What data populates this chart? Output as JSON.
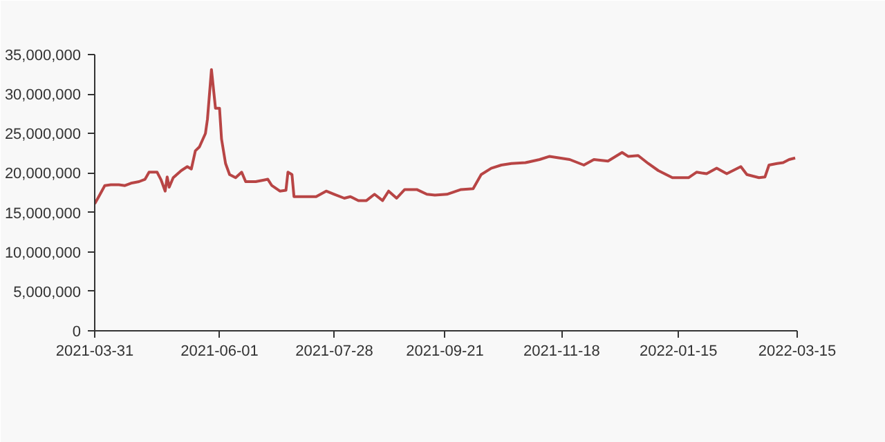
{
  "chart_data": {
    "type": "line",
    "x": [
      "2021-03-31",
      "2021-04-02",
      "2021-04-05",
      "2021-04-08",
      "2021-04-12",
      "2021-04-15",
      "2021-04-18",
      "2021-04-22",
      "2021-04-25",
      "2021-04-27",
      "2021-05-01",
      "2021-05-03",
      "2021-05-05",
      "2021-05-06",
      "2021-05-07",
      "2021-05-09",
      "2021-05-13",
      "2021-05-16",
      "2021-05-18",
      "2021-05-20",
      "2021-05-22",
      "2021-05-25",
      "2021-05-26",
      "2021-05-28",
      "2021-05-30",
      "2021-06-01",
      "2021-06-02",
      "2021-06-04",
      "2021-06-06",
      "2021-06-09",
      "2021-06-12",
      "2021-06-14",
      "2021-06-19",
      "2021-06-23",
      "2021-06-25",
      "2021-06-27",
      "2021-07-01",
      "2021-07-04",
      "2021-07-05",
      "2021-07-07",
      "2021-07-08",
      "2021-07-12",
      "2021-07-19",
      "2021-07-24",
      "2021-07-28",
      "2021-08-02",
      "2021-08-05",
      "2021-08-09",
      "2021-08-13",
      "2021-08-17",
      "2021-08-21",
      "2021-08-24",
      "2021-08-28",
      "2021-09-01",
      "2021-09-07",
      "2021-09-12",
      "2021-09-16",
      "2021-09-22",
      "2021-09-29",
      "2021-10-05",
      "2021-10-09",
      "2021-10-14",
      "2021-10-19",
      "2021-10-24",
      "2021-10-31",
      "2021-11-07",
      "2021-11-12",
      "2021-11-17",
      "2021-11-22",
      "2021-11-29",
      "2021-12-04",
      "2021-12-11",
      "2021-12-18",
      "2021-12-21",
      "2021-12-26",
      "2021-12-31",
      "2022-01-05",
      "2022-01-12",
      "2022-01-20",
      "2022-01-24",
      "2022-01-29",
      "2022-02-03",
      "2022-02-08",
      "2022-02-15",
      "2022-02-18",
      "2022-02-24",
      "2022-02-27",
      "2022-03-01",
      "2022-03-05",
      "2022-03-08",
      "2022-03-11",
      "2022-03-14"
    ],
    "series": [
      {
        "color": "#b84545",
        "values": [
          16100000,
          17000000,
          18400000,
          18500000,
          18500000,
          18400000,
          18700000,
          18900000,
          19200000,
          20100000,
          20100000,
          19100000,
          17700000,
          19500000,
          18200000,
          19400000,
          20300000,
          20800000,
          20500000,
          22800000,
          23300000,
          25000000,
          26800000,
          33100000,
          28200000,
          28200000,
          24300000,
          21200000,
          19800000,
          19400000,
          20100000,
          18900000,
          18900000,
          19100000,
          19200000,
          18400000,
          17700000,
          17800000,
          20100000,
          19800000,
          17000000,
          17000000,
          17000000,
          17700000,
          17300000,
          16800000,
          17000000,
          16500000,
          16500000,
          17300000,
          16500000,
          17700000,
          16800000,
          17900000,
          17900000,
          17300000,
          17200000,
          17300000,
          17900000,
          18000000,
          19800000,
          20600000,
          21000000,
          21200000,
          21300000,
          21700000,
          22100000,
          21900000,
          21700000,
          21000000,
          21700000,
          21500000,
          22600000,
          22100000,
          22200000,
          21200000,
          20300000,
          19400000,
          19400000,
          20100000,
          19900000,
          20600000,
          19900000,
          20800000,
          19800000,
          19400000,
          19500000,
          21000000,
          21200000,
          21300000,
          21700000,
          21900000
        ]
      }
    ],
    "xlim": [
      "2021-03-31",
      "2022-03-15"
    ],
    "xticks": [
      "2021-03-31",
      "2021-06-01",
      "2021-07-28",
      "2021-09-21",
      "2021-11-18",
      "2022-01-15",
      "2022-03-15"
    ],
    "ylim": [
      0,
      35000000
    ],
    "yticks": [
      {
        "value": 0,
        "label": "0"
      },
      {
        "value": 5000000,
        "label": "5,000,000"
      },
      {
        "value": 10000000,
        "label": "10,000,000"
      },
      {
        "value": 15000000,
        "label": "15,000,000"
      },
      {
        "value": 20000000,
        "label": "20,000,000"
      },
      {
        "value": 25000000,
        "label": "25,000,000"
      },
      {
        "value": 30000000,
        "label": "30,000,000"
      },
      {
        "value": 35000000,
        "label": "35,000,000"
      }
    ],
    "grid": false,
    "marker": "none",
    "line_style": "solid"
  }
}
